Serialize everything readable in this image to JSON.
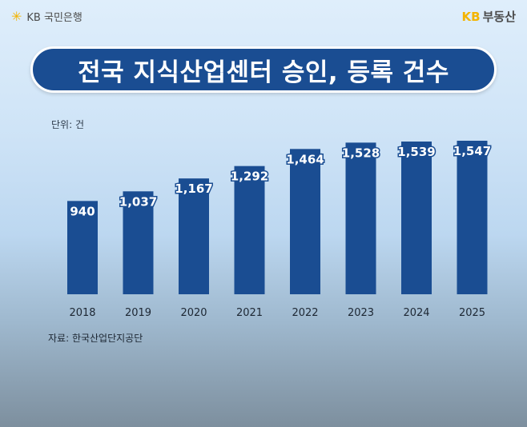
{
  "header": {
    "left_brand": "KB 국민은행",
    "right_brand_prefix": "KB",
    "right_brand": "부동산"
  },
  "colors": {
    "bar": "#1a4d92",
    "brand_yellow": "#f4b400"
  },
  "chart_data": {
    "type": "bar",
    "title": "전국 지식산업센터 승인, 등록 건수",
    "unit_label": "단위: 건",
    "source": "자료: 한국산업단지공단",
    "categories": [
      "2018",
      "2019",
      "2020",
      "2021",
      "2022",
      "2023",
      "2024",
      "2025"
    ],
    "values": [
      940,
      1037,
      1167,
      1292,
      1464,
      1528,
      1539,
      1547
    ],
    "value_labels": [
      "940",
      "1,037",
      "1,167",
      "1,292",
      "1,464",
      "1,528",
      "1,539",
      "1,547"
    ],
    "ylim": [
      0,
      1547
    ],
    "grid": false,
    "legend": "none"
  }
}
